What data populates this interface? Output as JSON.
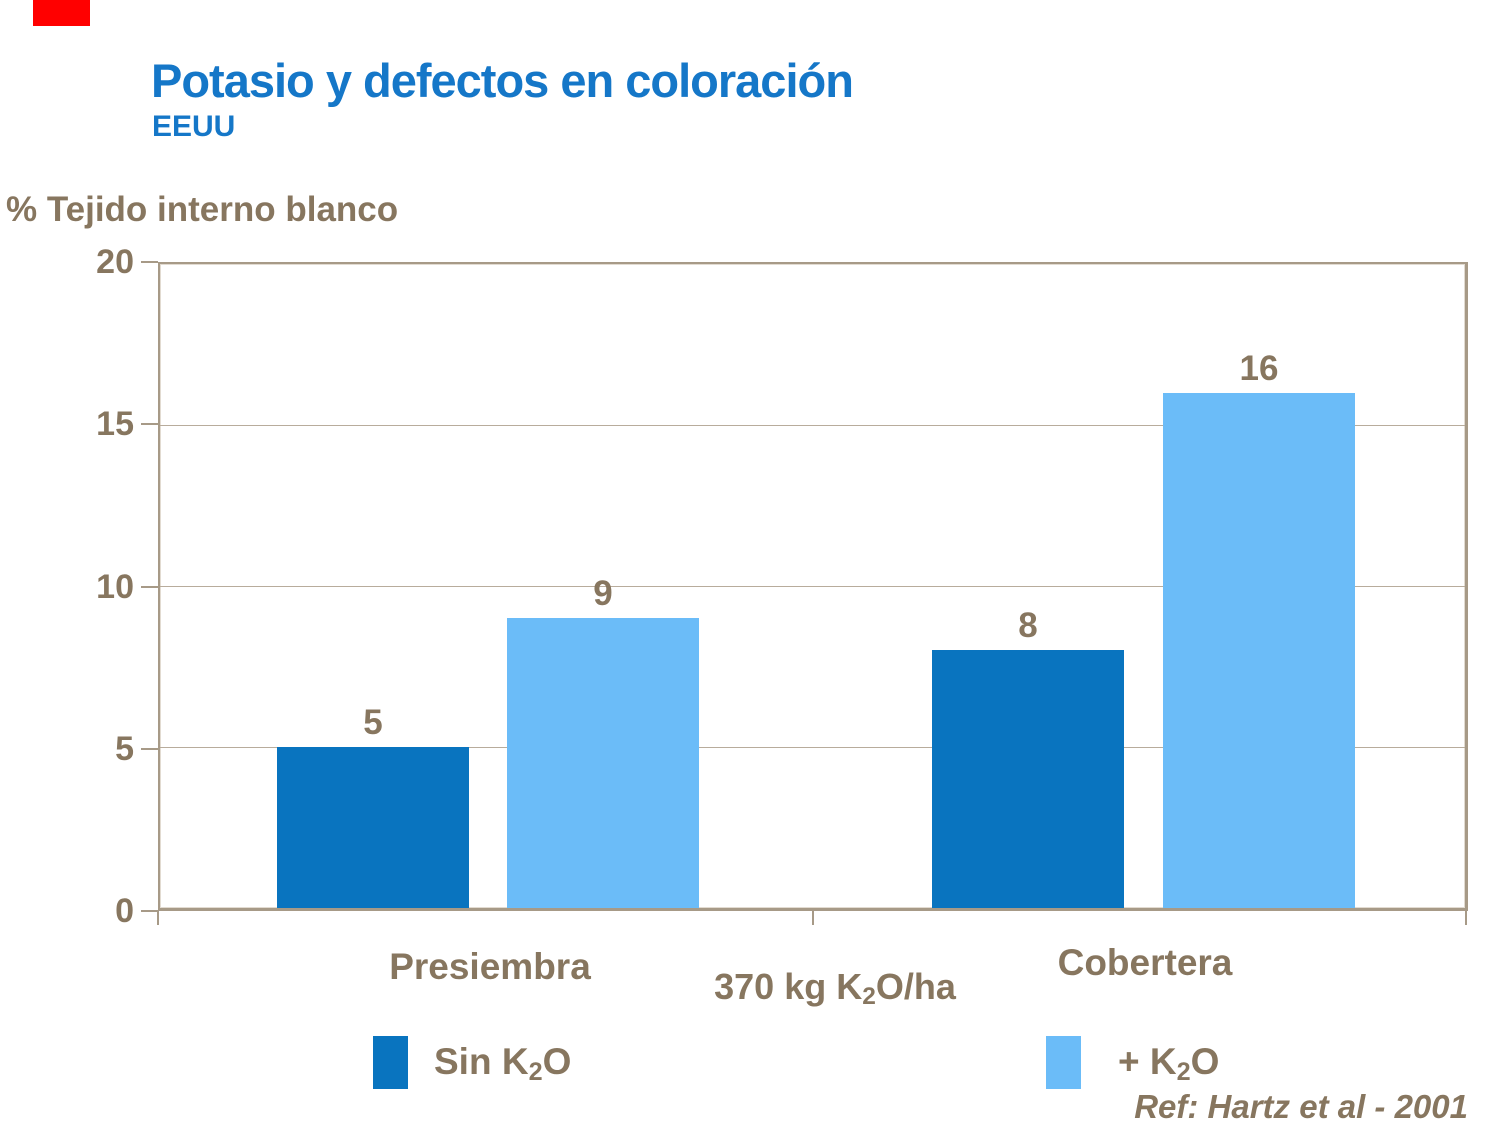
{
  "slide": {
    "title": "Potasio y defectos en coloración",
    "subtitle": "EEUU",
    "reference": "Ref: Hartz et al - 2001",
    "accent_color": "#FF0000"
  },
  "chart_data": {
    "type": "bar",
    "title": "Potasio y defectos en coloración",
    "subtitle": "EEUU",
    "ylabel": "% Tejido interno blanco",
    "categories": [
      "Presiembra",
      "Cobertera"
    ],
    "series": [
      {
        "name": "Sin K₂O",
        "values": [
          5,
          8
        ],
        "color": "#0974BF"
      },
      {
        "name": "+ K₂O",
        "values": [
          9,
          16
        ],
        "color": "#6BBCF8"
      }
    ],
    "annotation": "370 kg K₂O/ha",
    "ylim": [
      0,
      20
    ],
    "yticks": [
      0,
      5,
      10,
      15,
      20
    ],
    "grid": true,
    "legend_position": "bottom",
    "reference": "Ref: Hartz et al - 2001"
  },
  "display": {
    "annotation": {
      "pre": "370 kg K",
      "sub": "2",
      "post": "O/ha"
    },
    "legend": [
      {
        "pre": "Sin K",
        "sub": "2",
        "post": "O"
      },
      {
        "pre": "+ K",
        "sub": "2",
        "post": "O"
      }
    ]
  }
}
